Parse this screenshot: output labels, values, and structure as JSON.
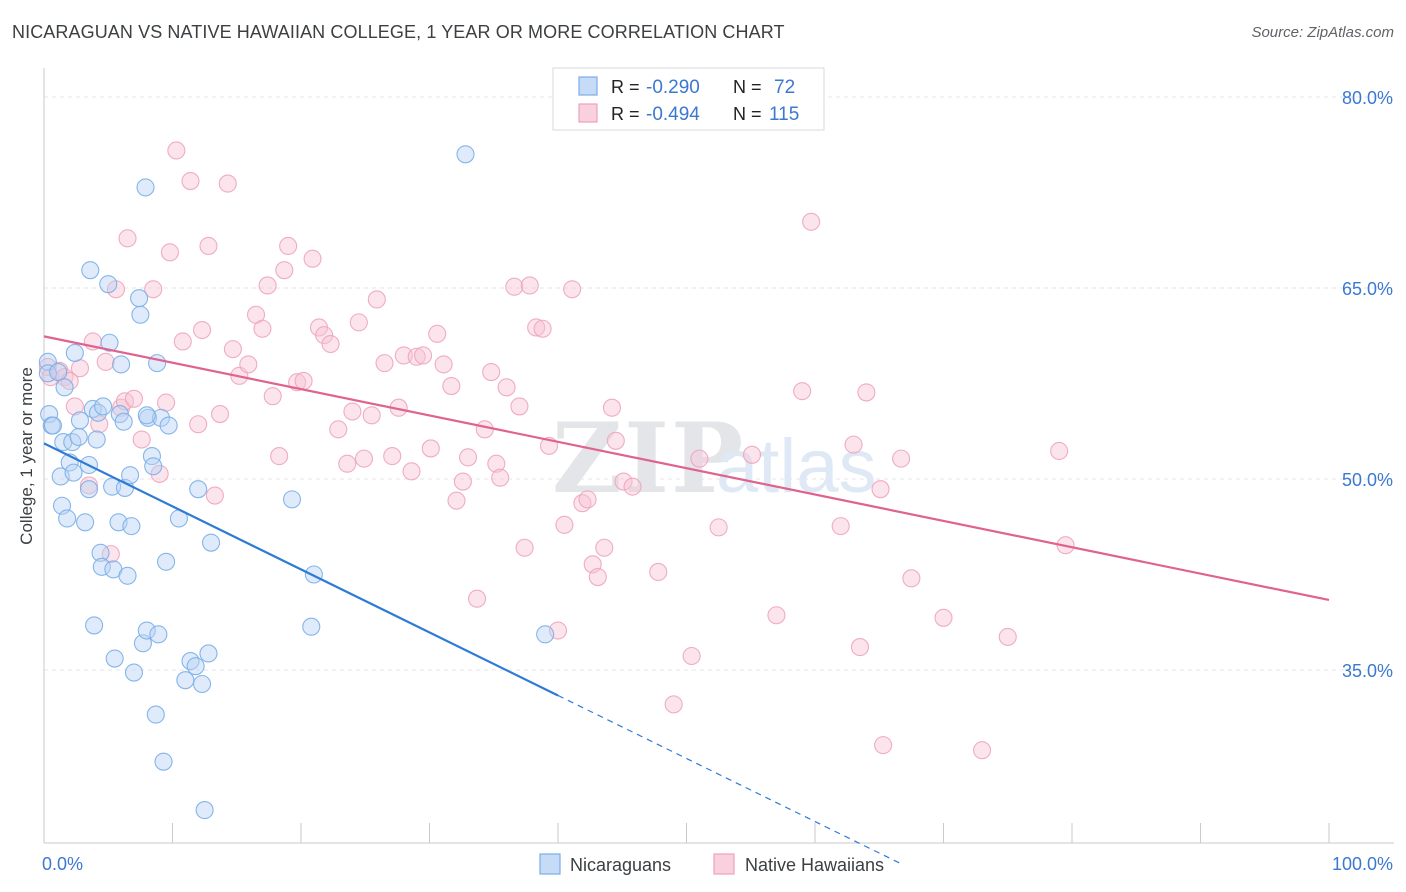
{
  "title": "NICARAGUAN VS NATIVE HAWAIIAN COLLEGE, 1 YEAR OR MORE CORRELATION CHART",
  "source": "Source: ZipAtlas.com",
  "watermark": {
    "zip": "ZIP",
    "atlas": "atlas"
  },
  "legend": {
    "r_label": "R =",
    "n_label": "N =",
    "rows": [
      {
        "r": "-0.290",
        "n": "72",
        "color": "#7aaee8"
      },
      {
        "r": "-0.494",
        "n": "115",
        "color": "#f0a0bc"
      }
    ]
  },
  "bottom_legend": [
    {
      "label": "Nicaraguans",
      "color": "#7aaee8"
    },
    {
      "label": "Native Hawaiians",
      "color": "#f0a0bc"
    }
  ],
  "colors": {
    "blue_line": "#2e7bd6",
    "pink_line": "#e0628e",
    "value_text": "#3b78d0",
    "axis_text": "#3b78d0"
  },
  "chart_data": {
    "type": "scatter",
    "title": "NICARAGUAN VS NATIVE HAWAIIAN COLLEGE, 1 YEAR OR MORE CORRELATION CHART",
    "xlabel": "",
    "ylabel": "College, 1 year or more",
    "xlim": [
      0,
      100
    ],
    "ylim": [
      20,
      82.5
    ],
    "x_tick_labels": [
      "0.0%",
      "100.0%"
    ],
    "y_ticks": [
      35,
      50,
      65,
      80
    ],
    "y_tick_labels": [
      "35.0%",
      "50.0%",
      "65.0%",
      "80.0%"
    ],
    "grid": true,
    "legend_position": "top-center",
    "series": [
      {
        "name": "Nicaraguans",
        "color": "#7aaee8",
        "trend": {
          "x0": 0,
          "y0": 52.8,
          "x1": 40,
          "y1": 33.0,
          "dash_to_x": 66.7
        },
        "points": [
          [
            0.3,
            59.2
          ],
          [
            0.3,
            58.3
          ],
          [
            0.4,
            55.1
          ],
          [
            0.6,
            54.2
          ],
          [
            0.7,
            54.2
          ],
          [
            1.1,
            58.4
          ],
          [
            1.3,
            50.2
          ],
          [
            1.4,
            47.9
          ],
          [
            1.5,
            52.9
          ],
          [
            1.6,
            57.2
          ],
          [
            1.8,
            46.9
          ],
          [
            2.0,
            51.3
          ],
          [
            2.2,
            52.9
          ],
          [
            2.3,
            50.5
          ],
          [
            2.4,
            59.9
          ],
          [
            2.7,
            53.3
          ],
          [
            2.8,
            54.6
          ],
          [
            3.2,
            46.6
          ],
          [
            3.5,
            49.2
          ],
          [
            3.5,
            51.1
          ],
          [
            3.6,
            66.4
          ],
          [
            3.8,
            55.5
          ],
          [
            3.9,
            38.5
          ],
          [
            4.1,
            53.1
          ],
          [
            4.2,
            55.2
          ],
          [
            4.4,
            44.2
          ],
          [
            4.5,
            43.1
          ],
          [
            4.6,
            55.7
          ],
          [
            5.0,
            65.3
          ],
          [
            5.1,
            60.7
          ],
          [
            5.3,
            49.4
          ],
          [
            5.4,
            42.9
          ],
          [
            5.5,
            35.9
          ],
          [
            5.8,
            46.6
          ],
          [
            5.9,
            55.1
          ],
          [
            6.0,
            59.0
          ],
          [
            6.2,
            54.5
          ],
          [
            6.3,
            49.3
          ],
          [
            6.5,
            42.4
          ],
          [
            6.7,
            50.3
          ],
          [
            6.8,
            46.3
          ],
          [
            7.0,
            34.8
          ],
          [
            7.4,
            64.2
          ],
          [
            7.5,
            62.9
          ],
          [
            7.7,
            37.1
          ],
          [
            7.9,
            72.9
          ],
          [
            8.0,
            38.1
          ],
          [
            8.1,
            54.8
          ],
          [
            8.4,
            51.8
          ],
          [
            8.5,
            51.0
          ],
          [
            8.7,
            31.5
          ],
          [
            8.8,
            59.1
          ],
          [
            8.9,
            37.8
          ],
          [
            9.1,
            54.8
          ],
          [
            9.3,
            27.8
          ],
          [
            9.5,
            43.5
          ],
          [
            9.7,
            54.2
          ],
          [
            10.5,
            46.9
          ],
          [
            11.0,
            34.2
          ],
          [
            11.4,
            35.7
          ],
          [
            11.8,
            35.3
          ],
          [
            12.0,
            49.2
          ],
          [
            12.3,
            33.9
          ],
          [
            12.5,
            24.0
          ],
          [
            12.8,
            36.3
          ],
          [
            13.0,
            45.0
          ],
          [
            19.3,
            48.4
          ],
          [
            20.8,
            38.4
          ],
          [
            21.0,
            42.5
          ],
          [
            32.8,
            75.5
          ],
          [
            39.0,
            37.8
          ],
          [
            8.0,
            55.0
          ]
        ]
      },
      {
        "name": "Native Hawaiians",
        "color": "#f0a0bc",
        "trend": {
          "x0": 0,
          "y0": 61.2,
          "x1": 100,
          "y1": 40.5
        },
        "points": [
          [
            0.3,
            58.8
          ],
          [
            0.5,
            58.0
          ],
          [
            1.2,
            58.5
          ],
          [
            1.6,
            58.0
          ],
          [
            2.0,
            57.7
          ],
          [
            2.4,
            55.7
          ],
          [
            2.8,
            58.7
          ],
          [
            3.5,
            49.5
          ],
          [
            3.8,
            60.8
          ],
          [
            4.3,
            54.3
          ],
          [
            4.8,
            59.2
          ],
          [
            5.2,
            44.1
          ],
          [
            5.6,
            64.9
          ],
          [
            6.0,
            55.6
          ],
          [
            6.3,
            56.1
          ],
          [
            6.5,
            68.9
          ],
          [
            7.0,
            56.3
          ],
          [
            7.6,
            53.1
          ],
          [
            8.5,
            64.9
          ],
          [
            9.0,
            50.4
          ],
          [
            9.5,
            56.0
          ],
          [
            9.8,
            67.8
          ],
          [
            10.3,
            75.8
          ],
          [
            10.8,
            60.8
          ],
          [
            11.4,
            73.4
          ],
          [
            12.0,
            54.3
          ],
          [
            12.3,
            61.7
          ],
          [
            12.8,
            68.3
          ],
          [
            13.3,
            48.7
          ],
          [
            13.7,
            55.1
          ],
          [
            14.3,
            73.2
          ],
          [
            14.7,
            60.2
          ],
          [
            15.2,
            58.1
          ],
          [
            15.9,
            59.0
          ],
          [
            16.5,
            62.9
          ],
          [
            17.0,
            61.8
          ],
          [
            17.4,
            65.2
          ],
          [
            17.8,
            56.5
          ],
          [
            18.3,
            51.8
          ],
          [
            18.7,
            66.4
          ],
          [
            19.0,
            68.3
          ],
          [
            19.7,
            57.6
          ],
          [
            20.2,
            57.7
          ],
          [
            20.9,
            67.3
          ],
          [
            21.4,
            61.9
          ],
          [
            21.8,
            61.3
          ],
          [
            22.3,
            60.6
          ],
          [
            22.9,
            53.9
          ],
          [
            23.6,
            51.2
          ],
          [
            24.0,
            55.3
          ],
          [
            24.5,
            62.3
          ],
          [
            24.9,
            51.6
          ],
          [
            25.5,
            55.0
          ],
          [
            25.9,
            64.1
          ],
          [
            26.5,
            59.1
          ],
          [
            27.1,
            51.8
          ],
          [
            27.6,
            55.6
          ],
          [
            28.0,
            59.7
          ],
          [
            28.6,
            50.6
          ],
          [
            29.0,
            59.6
          ],
          [
            29.5,
            59.7
          ],
          [
            30.1,
            52.4
          ],
          [
            30.6,
            61.4
          ],
          [
            31.1,
            59.0
          ],
          [
            31.7,
            57.3
          ],
          [
            32.1,
            48.3
          ],
          [
            32.6,
            49.8
          ],
          [
            33.0,
            51.7
          ],
          [
            33.7,
            40.6
          ],
          [
            34.3,
            53.9
          ],
          [
            34.8,
            58.4
          ],
          [
            35.2,
            51.2
          ],
          [
            35.5,
            50.1
          ],
          [
            36.0,
            57.2
          ],
          [
            36.6,
            65.1
          ],
          [
            37.0,
            55.7
          ],
          [
            37.4,
            44.6
          ],
          [
            37.8,
            65.2
          ],
          [
            38.3,
            61.9
          ],
          [
            38.8,
            61.8
          ],
          [
            39.3,
            52.6
          ],
          [
            40.0,
            38.1
          ],
          [
            40.5,
            46.4
          ],
          [
            41.1,
            64.9
          ],
          [
            41.9,
            48.1
          ],
          [
            42.3,
            48.4
          ],
          [
            42.7,
            43.3
          ],
          [
            43.1,
            42.3
          ],
          [
            43.6,
            44.6
          ],
          [
            44.2,
            55.6
          ],
          [
            44.5,
            53.0
          ],
          [
            45.1,
            49.8
          ],
          [
            45.8,
            49.4
          ],
          [
            47.8,
            42.7
          ],
          [
            49.0,
            32.3
          ],
          [
            50.4,
            36.1
          ],
          [
            51.0,
            51.6
          ],
          [
            52.5,
            46.2
          ],
          [
            55.1,
            51.9
          ],
          [
            57.0,
            39.3
          ],
          [
            59.0,
            56.9
          ],
          [
            59.7,
            70.2
          ],
          [
            62.0,
            46.3
          ],
          [
            63.0,
            52.7
          ],
          [
            63.5,
            36.8
          ],
          [
            64.0,
            56.8
          ],
          [
            65.1,
            49.2
          ],
          [
            65.3,
            29.1
          ],
          [
            66.7,
            51.6
          ],
          [
            67.5,
            42.2
          ],
          [
            70.0,
            39.1
          ],
          [
            73.0,
            28.7
          ],
          [
            75.0,
            37.6
          ],
          [
            79.0,
            52.2
          ],
          [
            79.5,
            44.8
          ]
        ]
      }
    ]
  }
}
